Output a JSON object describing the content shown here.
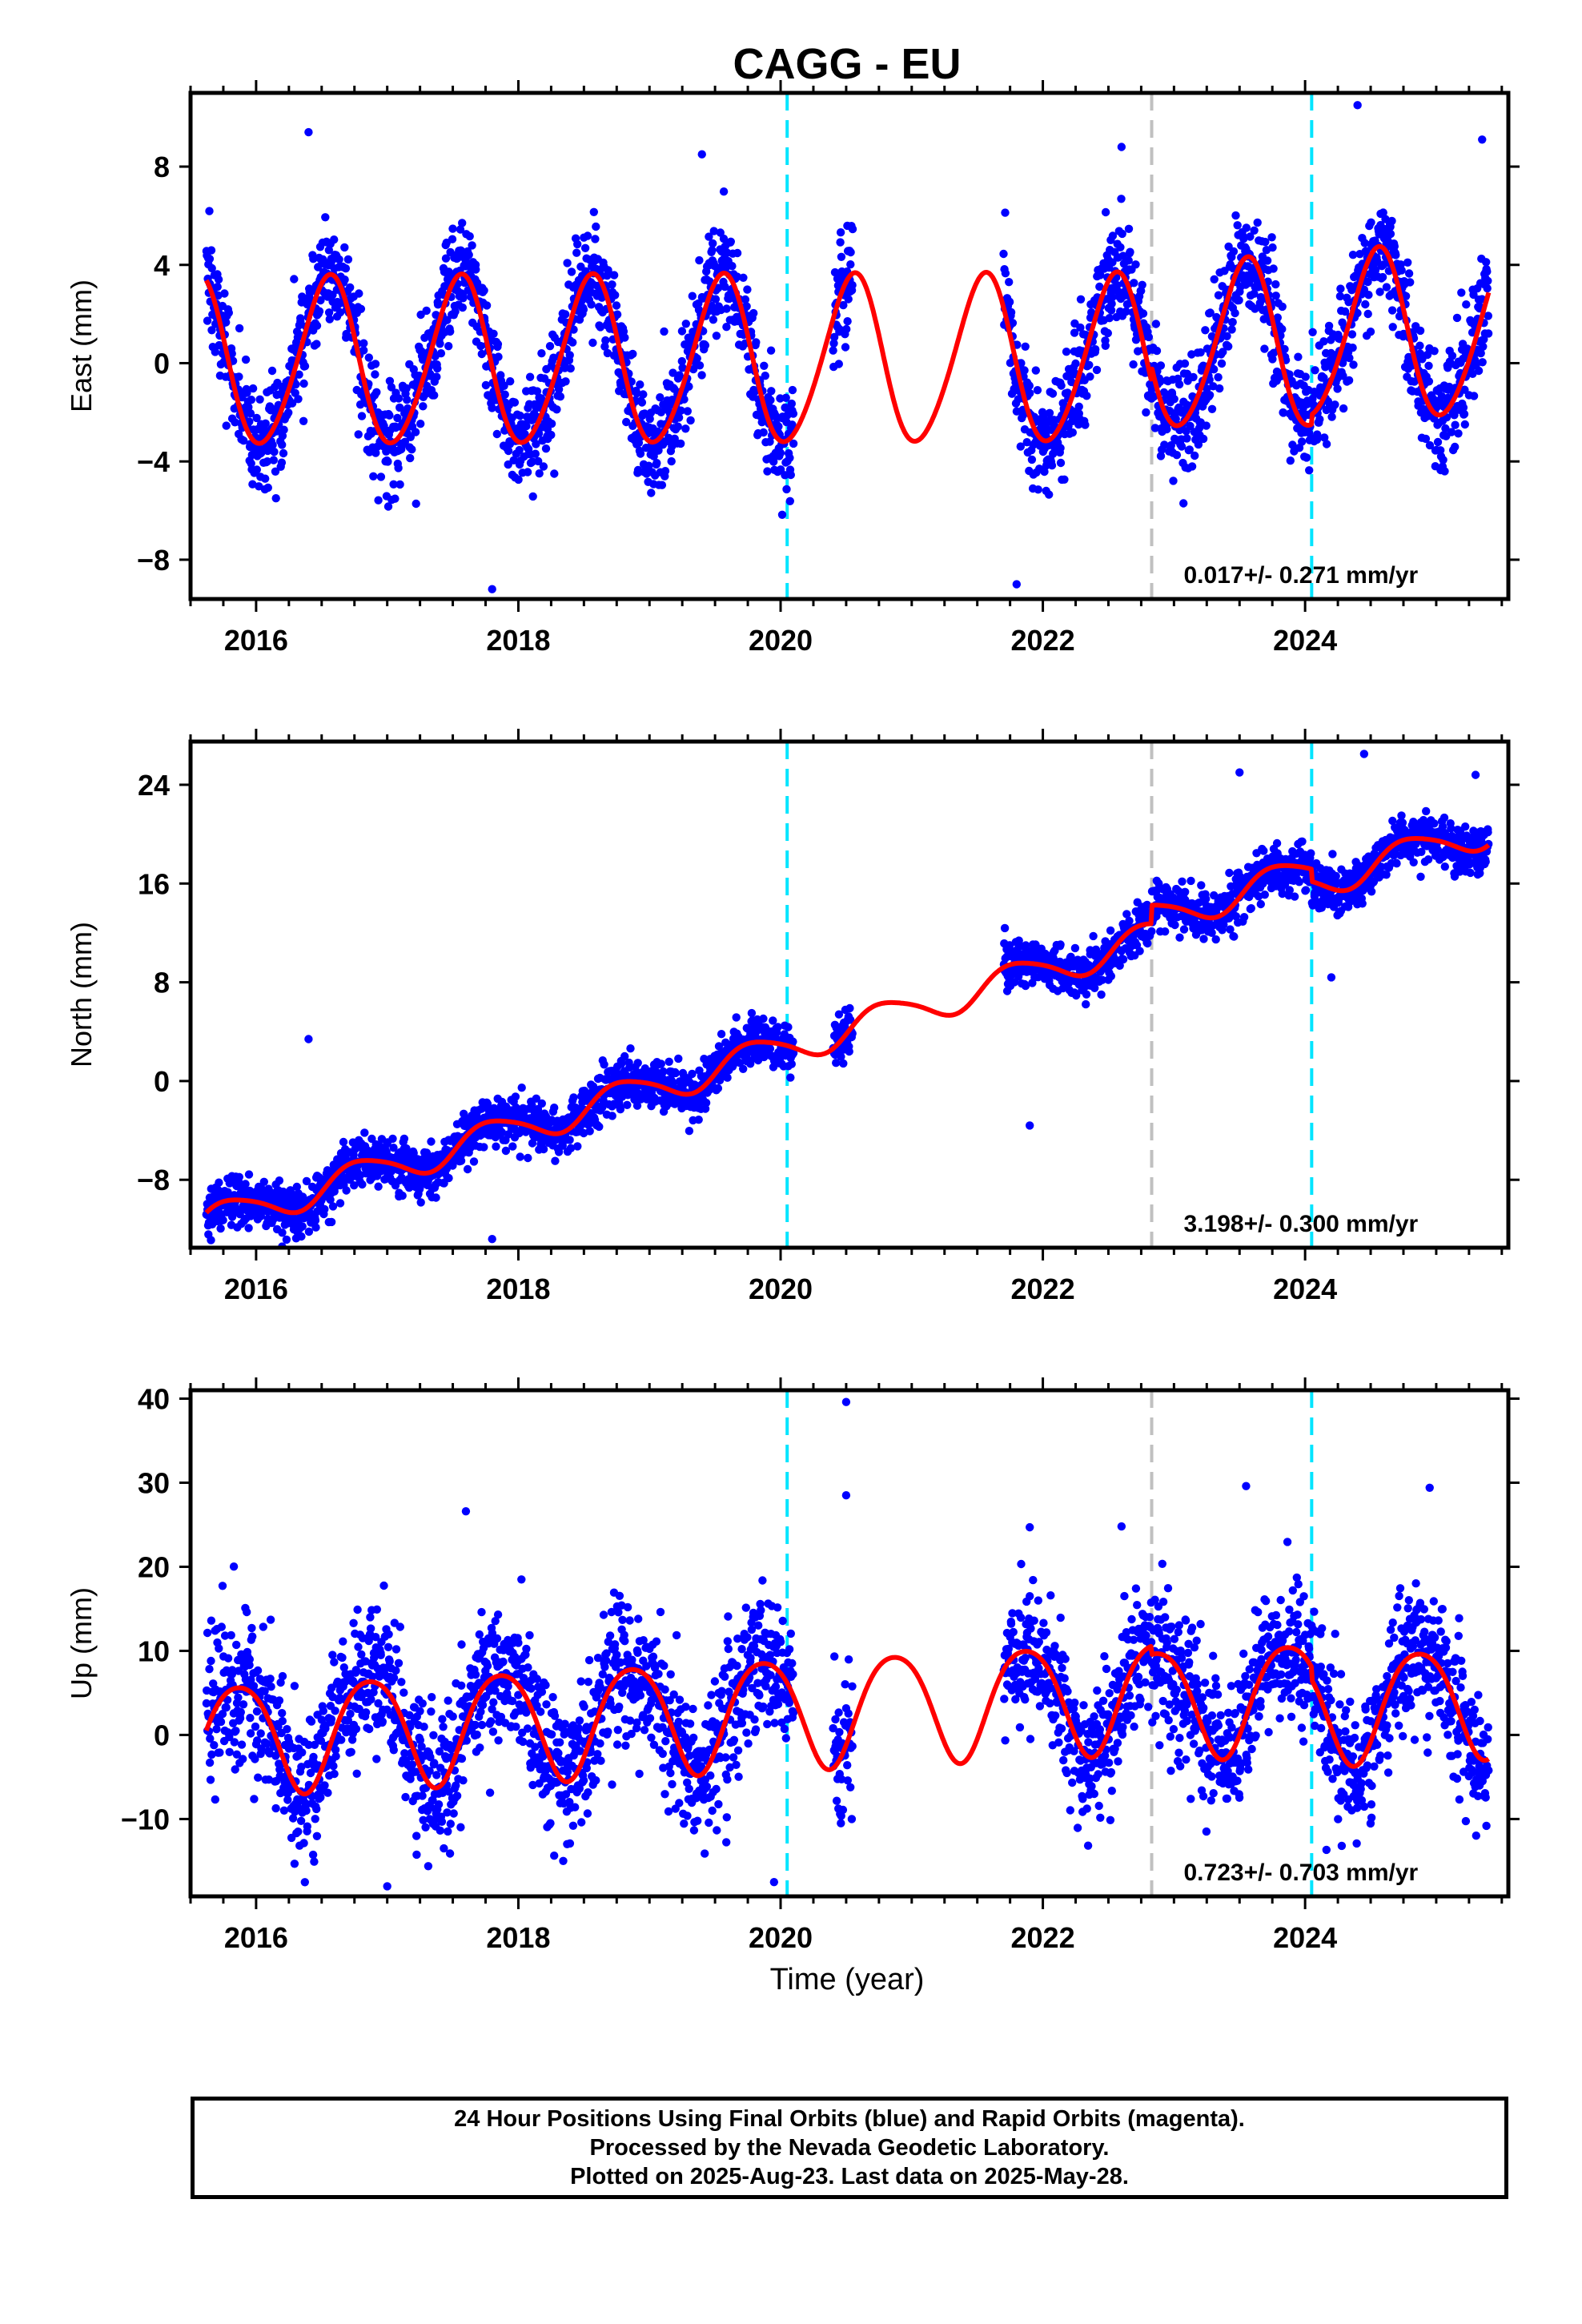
{
  "page_title": "CAGG - EU",
  "xaxis": {
    "label": "Time (year)"
  },
  "footer": {
    "line1": "24 Hour Positions Using Final Orbits (blue) and Rapid Orbits (magenta).",
    "line2": "Processed by the Nevada Geodetic Laboratory.",
    "line3": "Plotted on 2025-Aug-23. Last data on 2025-May-28."
  },
  "colors": {
    "data": "#0000ff",
    "model": "#ff0000",
    "eq_line": "#00e5ff",
    "equip_line": "#c0c0c0",
    "frame": "#000000"
  },
  "chart_data": [
    {
      "type": "scatter",
      "component": "east",
      "title": "CAGG - EU",
      "xlabel": "",
      "ylabel": "East (mm)",
      "xlim": [
        2015.5,
        2025.55
      ],
      "ylim": [
        -9.6,
        11.0
      ],
      "xticks": [
        2016,
        2018,
        2020,
        2022,
        2024
      ],
      "xtick_labels": [
        "2016",
        "2018",
        "2020",
        "2022",
        "2024"
      ],
      "yticks": [
        -8,
        -4,
        0,
        4,
        8
      ],
      "ytick_labels": [
        "−8",
        "−4",
        "0",
        "4",
        "8"
      ],
      "rate_label": "0.017+/- 0.271 mm/yr",
      "event_lines": [
        {
          "x": 2020.05,
          "kind": "cyan"
        },
        {
          "x": 2022.83,
          "kind": "gray"
        },
        {
          "x": 2024.05,
          "kind": "cyan"
        }
      ],
      "data_segments": [
        [
          2015.62,
          2020.1
        ],
        [
          2020.4,
          2020.55
        ],
        [
          2021.7,
          2025.4
        ]
      ],
      "model": {
        "slope": 0.017,
        "amplitude": 3.4,
        "annual_phase": 0.3,
        "semiannual_amplitude": 0.3,
        "noise": 1.1,
        "offsets": [
          {
            "x": 2022.83,
            "dy": 0.6
          },
          {
            "x": 2024.05,
            "dy": 0.4
          }
        ]
      },
      "extra_points": [
        [
          2016.4,
          9.4
        ],
        [
          2019.4,
          8.5
        ],
        [
          2024.4,
          10.5
        ],
        [
          2025.35,
          9.1
        ],
        [
          2017.8,
          -9.2
        ],
        [
          2021.8,
          -9.0
        ],
        [
          2022.6,
          8.8
        ]
      ]
    },
    {
      "type": "scatter",
      "component": "north",
      "title": "",
      "xlabel": "",
      "ylabel": "North (mm)",
      "xlim": [
        2015.5,
        2025.55
      ],
      "ylim": [
        -13.5,
        27.5
      ],
      "xticks": [
        2016,
        2018,
        2020,
        2022,
        2024
      ],
      "xtick_labels": [
        "2016",
        "2018",
        "2020",
        "2022",
        "2024"
      ],
      "yticks": [
        -8,
        0,
        8,
        16,
        24
      ],
      "ytick_labels": [
        "−8",
        "0",
        "8",
        "16",
        "24"
      ],
      "rate_label": "3.198+/- 0.300 mm/yr",
      "event_lines": [
        {
          "x": 2020.05,
          "kind": "cyan"
        },
        {
          "x": 2022.83,
          "kind": "gray"
        },
        {
          "x": 2024.05,
          "kind": "cyan"
        }
      ],
      "data_segments": [
        [
          2015.62,
          2020.1
        ],
        [
          2020.4,
          2020.55
        ],
        [
          2021.7,
          2025.4
        ]
      ],
      "model": {
        "intercept_year": 2016.0,
        "intercept": -10.2,
        "slope": 3.198,
        "amplitude": 1.3,
        "annual_phase": 0.55,
        "semiannual_amplitude": 0.2,
        "noise": 1.0,
        "offsets": [
          {
            "x": 2022.83,
            "dy": 1.5
          },
          {
            "x": 2024.05,
            "dy": -1.0
          }
        ]
      },
      "extra_points": [
        [
          2016.4,
          3.4
        ],
        [
          2023.5,
          25.0
        ],
        [
          2024.45,
          26.5
        ],
        [
          2025.3,
          24.8
        ],
        [
          2021.9,
          -3.6
        ],
        [
          2024.2,
          8.4
        ],
        [
          2017.8,
          -12.8
        ]
      ]
    },
    {
      "type": "scatter",
      "component": "up",
      "title": "",
      "xlabel": "Time (year)",
      "ylabel": "Up (mm)",
      "xlim": [
        2015.5,
        2025.55
      ],
      "ylim": [
        -19.2,
        41.0
      ],
      "xticks": [
        2016,
        2018,
        2020,
        2022,
        2024
      ],
      "xtick_labels": [
        "2016",
        "2018",
        "2020",
        "2022",
        "2024"
      ],
      "yticks": [
        -10,
        0,
        10,
        20,
        30,
        40
      ],
      "ytick_labels": [
        "−10",
        "0",
        "10",
        "20",
        "30",
        "40"
      ],
      "rate_label": "0.723+/- 0.703 mm/yr",
      "event_lines": [
        {
          "x": 2020.05,
          "kind": "cyan"
        },
        {
          "x": 2022.83,
          "kind": "gray"
        },
        {
          "x": 2024.05,
          "kind": "cyan"
        }
      ],
      "data_segments": [
        [
          2015.62,
          2020.1
        ],
        [
          2020.4,
          2020.55
        ],
        [
          2021.7,
          2025.4
        ]
      ],
      "model": {
        "slope": 0.723,
        "amplitude": 6.5,
        "annual_phase": 0.62,
        "semiannual_amplitude": 0.8,
        "noise": 4.2,
        "offsets": [
          {
            "x": 2022.83,
            "dy": -1.0
          },
          {
            "x": 2024.05,
            "dy": -1.5
          }
        ]
      },
      "extra_points": [
        [
          2020.5,
          39.6
        ],
        [
          2020.5,
          28.5
        ],
        [
          2017.6,
          26.6
        ],
        [
          2023.55,
          29.6
        ],
        [
          2024.95,
          29.4
        ],
        [
          2021.9,
          24.7
        ],
        [
          2022.6,
          24.8
        ],
        [
          2019.95,
          -17.5
        ],
        [
          2017.0,
          -18.0
        ]
      ]
    }
  ]
}
